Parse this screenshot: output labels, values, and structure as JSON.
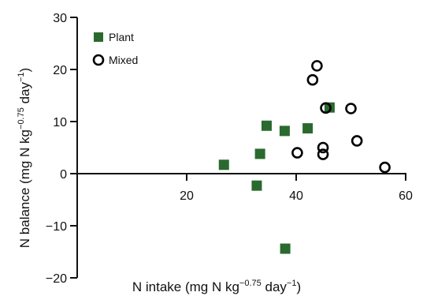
{
  "chart_data": {
    "type": "scatter",
    "xlabel": {
      "prefix": "N intake (mg N kg",
      "sup1": "−0.75",
      "mid": " day",
      "sup2": "−1",
      "suffix": ")"
    },
    "ylabel": {
      "prefix": "N balance (mg N kg",
      "sup1": "−0.75",
      "mid": " day",
      "sup2": "−1",
      "suffix": ")"
    },
    "xlim": [
      0,
      60
    ],
    "ylim": [
      -20,
      30
    ],
    "x_ticks": [
      {
        "value": 20,
        "label": "20"
      },
      {
        "value": 40,
        "label": "40"
      },
      {
        "value": 60,
        "label": "60"
      }
    ],
    "y_ticks": [
      {
        "value": -20,
        "label": "−20"
      },
      {
        "value": -10,
        "label": "−10"
      },
      {
        "value": 0,
        "label": "0"
      },
      {
        "value": 10,
        "label": "10"
      },
      {
        "value": 20,
        "label": "20"
      },
      {
        "value": 30,
        "label": "30"
      }
    ],
    "grid": false,
    "legend_position": "top-left",
    "series": [
      {
        "name": "Plant",
        "marker": "filled-square",
        "color": "#2a6a2e",
        "points": [
          {
            "x": 26.8,
            "y": 1.7
          },
          {
            "x": 32.8,
            "y": -2.3
          },
          {
            "x": 33.4,
            "y": 3.8
          },
          {
            "x": 34.6,
            "y": 9.2
          },
          {
            "x": 37.9,
            "y": 8.2
          },
          {
            "x": 38.0,
            "y": -14.4
          },
          {
            "x": 42.1,
            "y": 8.7
          },
          {
            "x": 46.1,
            "y": 12.7
          }
        ]
      },
      {
        "name": "Mixed",
        "marker": "open-circle",
        "color": "#000000",
        "points": [
          {
            "x": 40.2,
            "y": 4.0
          },
          {
            "x": 43.0,
            "y": 18.0
          },
          {
            "x": 43.8,
            "y": 20.7
          },
          {
            "x": 44.9,
            "y": 5.0
          },
          {
            "x": 44.9,
            "y": 3.7
          },
          {
            "x": 45.4,
            "y": 12.6
          },
          {
            "x": 50.0,
            "y": 12.5
          },
          {
            "x": 51.1,
            "y": 6.3
          },
          {
            "x": 56.2,
            "y": 1.2
          }
        ]
      }
    ]
  }
}
